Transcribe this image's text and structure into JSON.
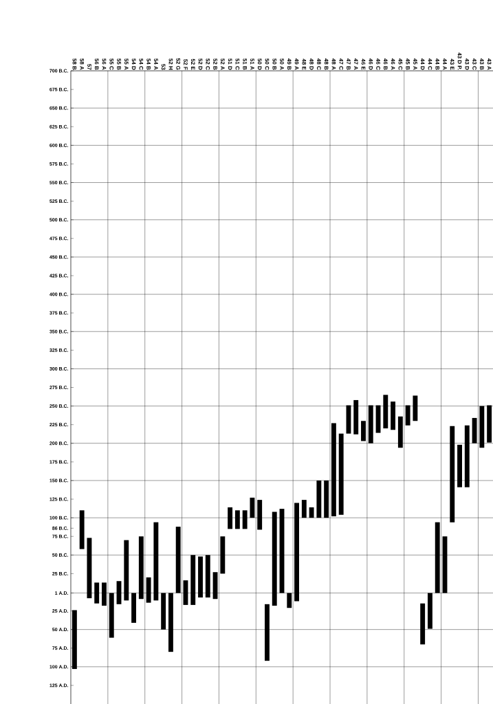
{
  "chart_data": {
    "type": "bar",
    "color": "#000000",
    "categories": [
      "58 B",
      "58 A",
      "57",
      "56 B",
      "56 A",
      "55 C",
      "55 B",
      "55 A",
      "54 D",
      "54 C",
      "54 B",
      "54 A",
      "53",
      "52 H",
      "52 G",
      "52 F",
      "52 E",
      "52 D",
      "52 C",
      "52 B",
      "52 A",
      "51 D",
      "51 C",
      "51 B",
      "51 A",
      "50 D",
      "50 C",
      "50 B",
      "50 A",
      "49 B",
      "49 A",
      "48 E",
      "48 D",
      "48 C",
      "48 B",
      "48 A",
      "47 C",
      "47 B",
      "47 A",
      "46 E",
      "46 D",
      "46 C",
      "46 B",
      "46 A",
      "45 C",
      "45 B",
      "45 A",
      "44 D",
      "44 C",
      "44 B",
      "44 A",
      "43 E",
      "43 D P.",
      "43 D",
      "43 C",
      "43 B",
      "43 A"
    ],
    "base": [
      24,
      -110,
      -73,
      -13,
      -13,
      1,
      -15,
      -70,
      1,
      -75,
      -20,
      -94,
      1,
      1,
      -88,
      -16,
      -50,
      -48,
      -50,
      -27,
      -75,
      -114,
      -110,
      -110,
      -127,
      -124,
      16,
      -108,
      -112,
      1,
      -120,
      -124,
      -114,
      -150,
      -150,
      -227,
      -213,
      -251,
      -258,
      -230,
      -251,
      -251,
      -265,
      -256,
      -236,
      -251,
      -264,
      15,
      1,
      -94,
      -75,
      -223,
      -198,
      -224,
      -234,
      -250,
      -251
    ],
    "values": [
      79,
      52,
      81,
      28,
      31,
      60,
      31,
      81,
      40,
      84,
      34,
      105,
      49,
      79,
      89,
      33,
      67,
      55,
      57,
      36,
      50,
      29,
      25,
      25,
      27,
      40,
      76,
      126,
      113,
      20,
      132,
      24,
      14,
      50,
      50,
      125,
      109,
      38,
      46,
      27,
      51,
      37,
      45,
      38,
      42,
      27,
      34,
      55,
      48,
      95,
      76,
      129,
      57,
      83,
      34,
      56,
      50
    ],
    "ylim": [
      150,
      -700
    ],
    "yticks": [
      {
        "value": -700,
        "label": "700 B.C."
      },
      {
        "value": -675,
        "label": "675 B.C."
      },
      {
        "value": -650,
        "label": "650 B.C."
      },
      {
        "value": -625,
        "label": "625 B.C."
      },
      {
        "value": -600,
        "label": "600 B.C."
      },
      {
        "value": -575,
        "label": "575 B.C."
      },
      {
        "value": -550,
        "label": "550 B.C."
      },
      {
        "value": -525,
        "label": "525 B.C."
      },
      {
        "value": -500,
        "label": "500 B.C."
      },
      {
        "value": -475,
        "label": "475 B.C."
      },
      {
        "value": -450,
        "label": "450 B.C."
      },
      {
        "value": -425,
        "label": "425 B.C."
      },
      {
        "value": -400,
        "label": "400 B.C."
      },
      {
        "value": -375,
        "label": "375 B.C."
      },
      {
        "value": -350,
        "label": "350 B.C."
      },
      {
        "value": -325,
        "label": "325 B.C."
      },
      {
        "value": -300,
        "label": "300 B.C."
      },
      {
        "value": -275,
        "label": "275 B.C."
      },
      {
        "value": -250,
        "label": "250 B.C."
      },
      {
        "value": -225,
        "label": "225 B.C."
      },
      {
        "value": -200,
        "label": "200 B.C."
      },
      {
        "value": -175,
        "label": "175 B.C."
      },
      {
        "value": -150,
        "label": "150 B.C."
      },
      {
        "value": -125,
        "label": "125 B.C."
      },
      {
        "value": -100,
        "label": "100 B.C."
      },
      {
        "value": -86,
        "label": "86 B.C."
      },
      {
        "value": -75,
        "label": "75 B.C."
      },
      {
        "value": -50,
        "label": "50 B.C."
      },
      {
        "value": -25,
        "label": "25 B.C."
      },
      {
        "value": 1,
        "label": "1 A.D."
      },
      {
        "value": 25,
        "label": "25 A.D."
      },
      {
        "value": 50,
        "label": "50 A.D."
      },
      {
        "value": 75,
        "label": "75 A.D."
      },
      {
        "value": 100,
        "label": "100 A.D."
      },
      {
        "value": 125,
        "label": "125 A.D."
      }
    ],
    "grid": true
  }
}
